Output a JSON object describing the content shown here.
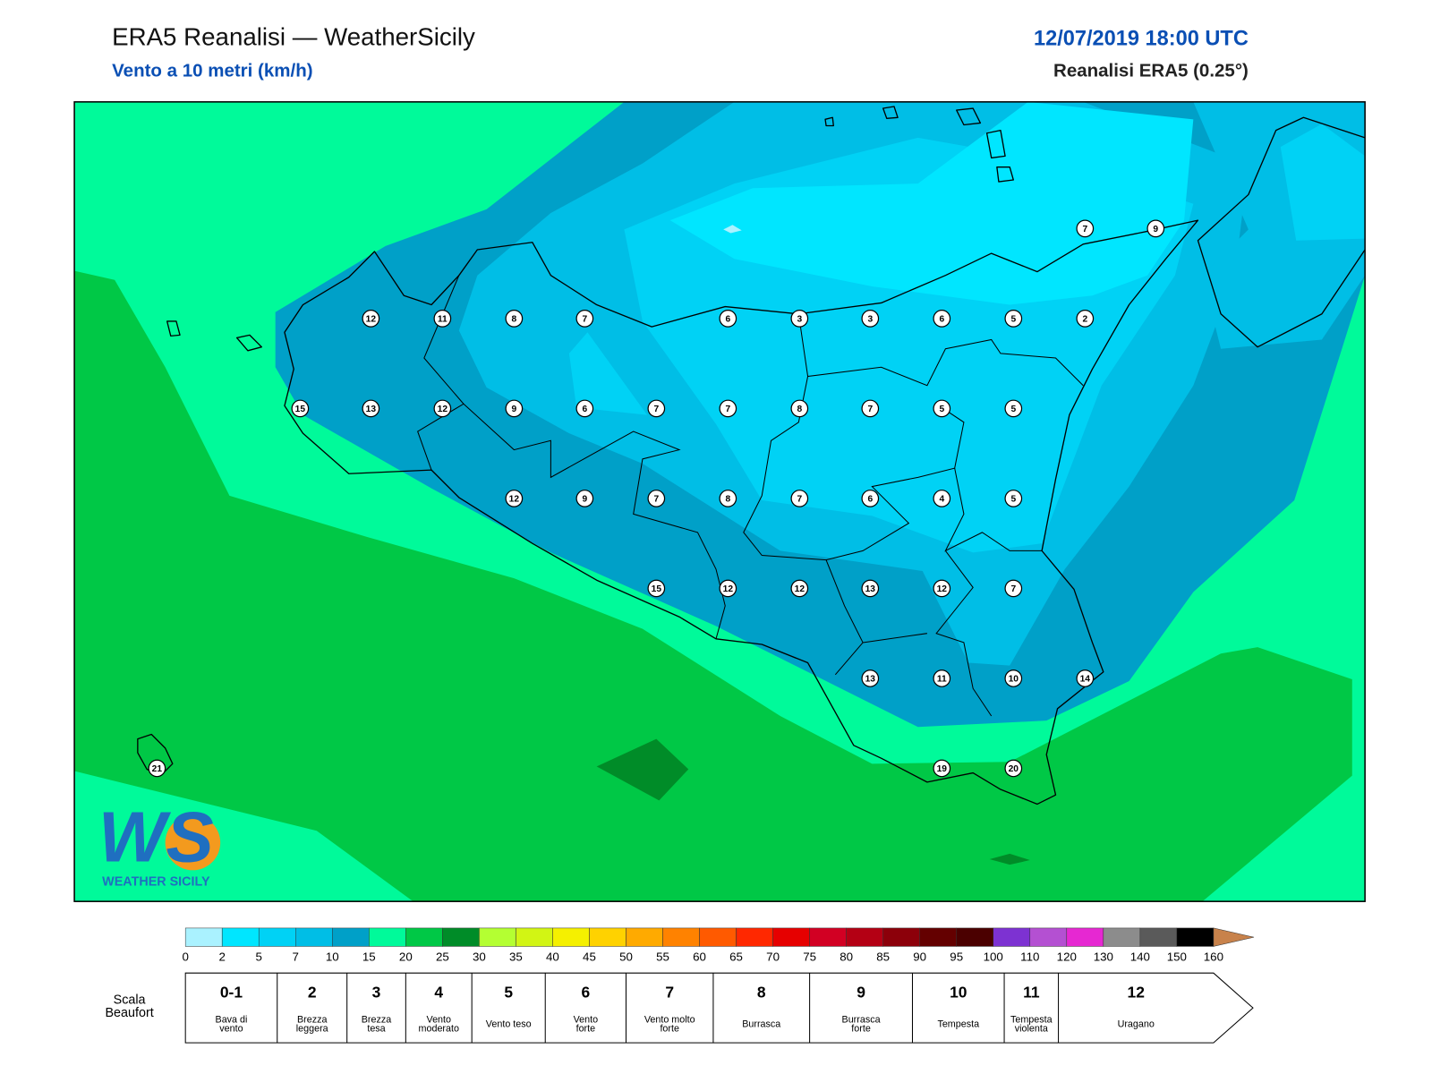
{
  "header": {
    "title": "ERA5 Reanalisi — WeatherSicily",
    "subtitle": "Vento a 10 metri (km/h)",
    "datetime": "12/07/2019 18:00 UTC",
    "source": "Reanalisi ERA5 (0.25°)"
  },
  "stations": {
    "values": [
      7,
      9,
      12,
      11,
      8,
      7,
      6,
      3,
      3,
      6,
      5,
      2,
      15,
      13,
      12,
      9,
      6,
      7,
      7,
      8,
      7,
      5,
      5,
      12,
      9,
      7,
      8,
      7,
      6,
      4,
      5,
      15,
      12,
      12,
      13,
      12,
      7,
      13,
      11,
      10,
      14,
      21,
      19,
      20
    ]
  },
  "logo": {
    "mark": "WS",
    "name": "WEATHER SICILY"
  },
  "colorbar": {
    "levels": [
      0,
      2,
      5,
      7,
      10,
      15,
      20,
      25,
      30,
      35,
      40,
      45,
      50,
      55,
      60,
      65,
      70,
      75,
      80,
      85,
      90,
      95,
      100,
      110,
      120,
      130,
      140,
      150,
      160
    ],
    "colors": [
      "#aaf2ff",
      "#00e6ff",
      "#00d2f5",
      "#00bee6",
      "#00a0c8",
      "#00fa9a",
      "#00c846",
      "#008c28",
      "#b4ff32",
      "#d2f514",
      "#f5f000",
      "#ffd200",
      "#ffaa00",
      "#ff8200",
      "#ff5a00",
      "#ff2800",
      "#e60000",
      "#d20023",
      "#b40014",
      "#8c000a",
      "#640000",
      "#4b0000",
      "#7d32d2",
      "#b450d2",
      "#e628d2",
      "#8c8c8c",
      "#5a5a5a",
      "#000000",
      "#8c4b28",
      "#c8824b"
    ]
  },
  "beaufort": {
    "label": [
      "Scala",
      "Beaufort"
    ],
    "classes": [
      {
        "force": "0-1",
        "name": [
          "Bava di",
          "vento"
        ]
      },
      {
        "force": "2",
        "name": [
          "Brezza",
          "leggera"
        ]
      },
      {
        "force": "3",
        "name": [
          "Brezza",
          "tesa"
        ]
      },
      {
        "force": "4",
        "name": [
          "Vento",
          "moderato"
        ]
      },
      {
        "force": "5",
        "name": [
          "Vento teso"
        ]
      },
      {
        "force": "6",
        "name": [
          "Vento",
          "forte"
        ]
      },
      {
        "force": "7",
        "name": [
          "Vento molto",
          "forte"
        ]
      },
      {
        "force": "8",
        "name": [
          "Burrasca"
        ]
      },
      {
        "force": "9",
        "name": [
          "Burrasca",
          "forte"
        ]
      },
      {
        "force": "10",
        "name": [
          "Tempesta"
        ]
      },
      {
        "force": "11",
        "name": [
          "Tempesta",
          "violenta"
        ]
      },
      {
        "force": "12",
        "name": [
          "Uragano"
        ]
      }
    ]
  }
}
